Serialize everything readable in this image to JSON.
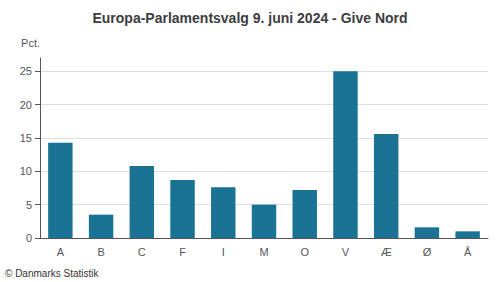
{
  "chart_data": {
    "type": "bar",
    "title": "Europa-Parlamentsvalg 9. juni 2024 - Give Nord",
    "ylabel": "Pct.",
    "annotations": [
      "© Danmarks Statistik"
    ],
    "categories": [
      "A",
      "B",
      "C",
      "F",
      "I",
      "M",
      "O",
      "V",
      "Æ",
      "Ø",
      "Å"
    ],
    "values": [
      14.3,
      3.5,
      10.8,
      8.7,
      7.6,
      5.0,
      7.2,
      25.0,
      15.6,
      1.6,
      1.0
    ],
    "color": "#1a7294",
    "ylim": [
      0,
      27
    ],
    "yticks": [
      0,
      5,
      10,
      15,
      20,
      25
    ],
    "grid": true
  }
}
